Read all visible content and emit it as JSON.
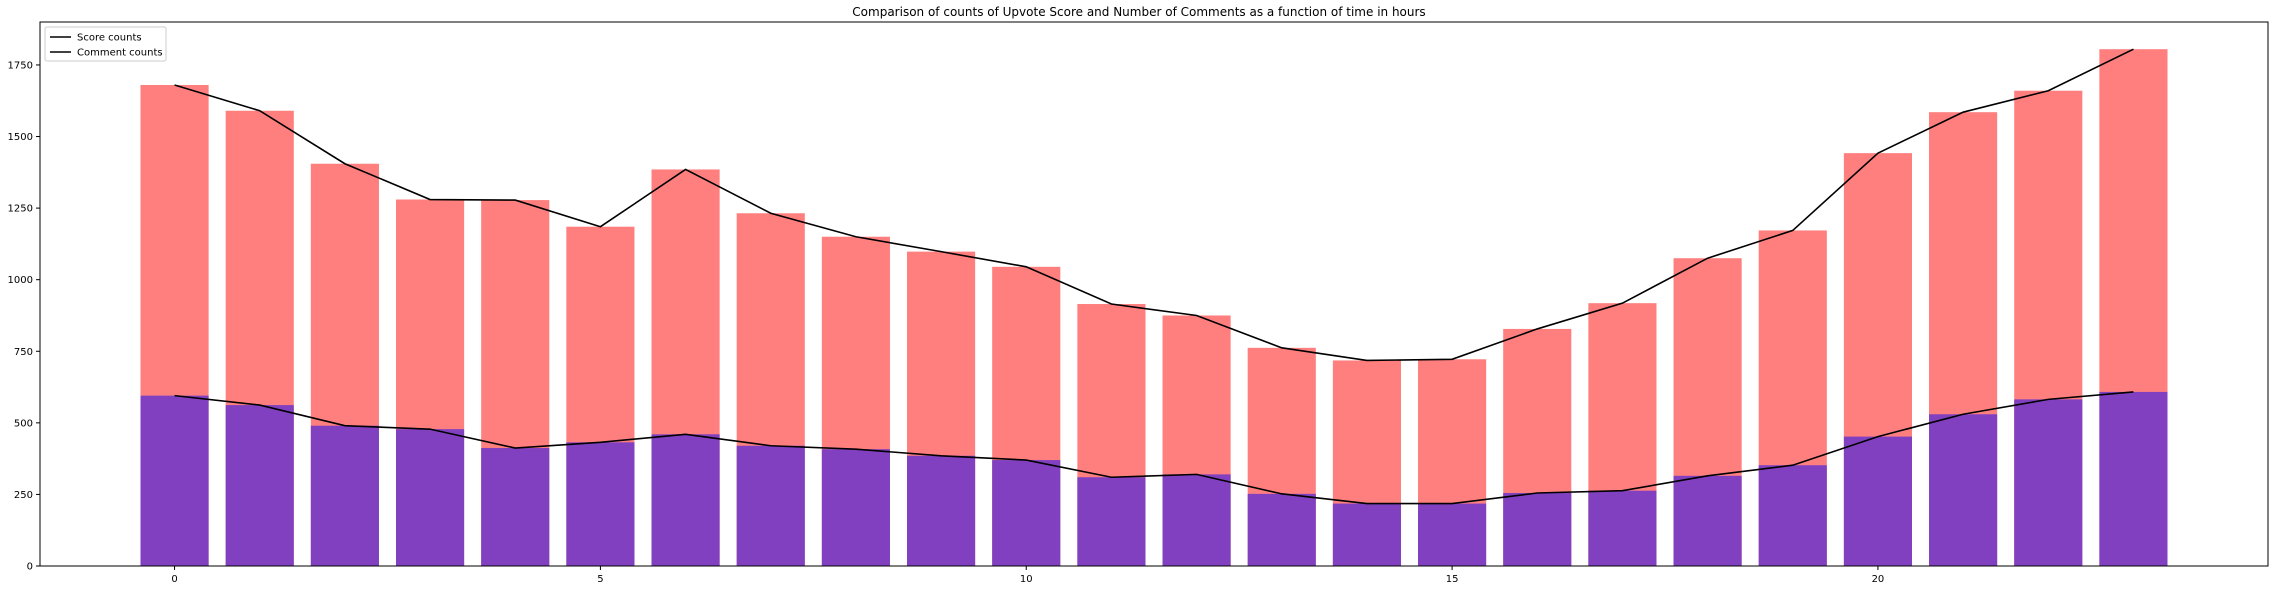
{
  "chart_data": {
    "type": "bar",
    "title": "Comparison of counts of Upvote Score and Number of Comments as a function of time in hours",
    "xlabel": "",
    "ylabel": "",
    "x": [
      0,
      1,
      2,
      3,
      4,
      5,
      6,
      7,
      8,
      9,
      10,
      11,
      12,
      13,
      14,
      15,
      16,
      17,
      18,
      19,
      20,
      21,
      22,
      23
    ],
    "xlim": [
      -1.58,
      24.58
    ],
    "ylim": [
      0,
      1900
    ],
    "xticks": [
      0,
      5,
      10,
      15,
      20
    ],
    "yticks": [
      0,
      250,
      500,
      750,
      1000,
      1250,
      1500,
      1750
    ],
    "grid": false,
    "legend_position": "top-left",
    "series": [
      {
        "name": "Score counts",
        "type": "line+bar",
        "color": "#000000",
        "bar_color": "#ff7f7f",
        "values": [
          1680,
          1590,
          1405,
          1280,
          1278,
          1185,
          1385,
          1232,
          1150,
          1098,
          1045,
          915,
          875,
          762,
          718,
          722,
          828,
          918,
          1075,
          1172,
          1442,
          1585,
          1660,
          1805
        ]
      },
      {
        "name": "Comment counts",
        "type": "line+bar",
        "color": "#000000",
        "bar_color": "#8040c0",
        "values": [
          595,
          562,
          490,
          478,
          412,
          432,
          460,
          420,
          408,
          385,
          370,
          310,
          320,
          252,
          218,
          218,
          255,
          263,
          315,
          352,
          452,
          530,
          582,
          608
        ]
      }
    ]
  }
}
